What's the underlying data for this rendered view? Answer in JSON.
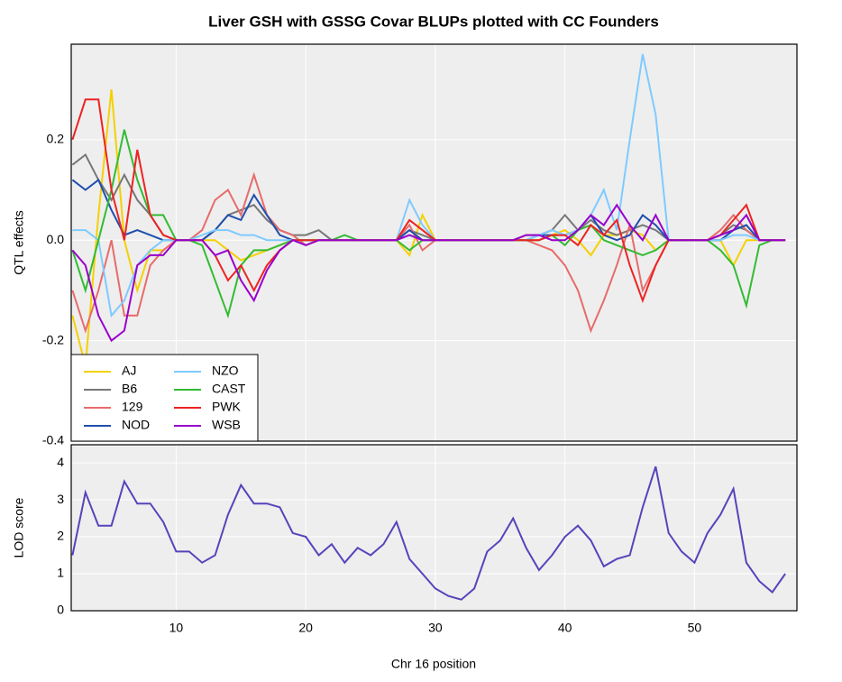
{
  "chart_data": [
    {
      "type": "line",
      "title": "Liver GSH with GSSG Covar BLUPs plotted with CC Founders",
      "y_label": "QTL effects",
      "x": [
        2,
        3,
        4,
        5,
        6,
        7,
        8,
        9,
        10,
        11,
        12,
        13,
        14,
        15,
        16,
        17,
        18,
        19,
        20,
        21,
        22,
        23,
        24,
        25,
        26,
        27,
        28,
        29,
        30,
        31,
        32,
        33,
        34,
        35,
        36,
        37,
        38,
        39,
        40,
        41,
        42,
        43,
        44,
        45,
        46,
        47,
        48,
        49,
        50,
        51,
        52,
        53,
        54,
        55,
        56,
        57
      ],
      "xlim": [
        1.9,
        57.9
      ],
      "ylim": [
        -0.4,
        0.39
      ],
      "yticks": [
        0.2,
        {
          "value": 0,
          "label": "0.0"
        },
        -0.2,
        -0.4
      ],
      "grid": true,
      "legend": "lower left",
      "series": [
        {
          "name": "AJ",
          "color": "#f5d000",
          "values": [
            -0.15,
            -0.25,
            0.05,
            0.3,
            0,
            -0.1,
            -0.02,
            -0.02,
            0,
            0,
            0,
            0,
            -0.02,
            -0.04,
            -0.03,
            -0.02,
            -0.01,
            0,
            0,
            0,
            0,
            0,
            0,
            0,
            0,
            0,
            -0.03,
            0.05,
            0,
            0,
            0,
            0,
            0,
            0,
            0,
            0,
            0,
            0.01,
            0.02,
            0,
            -0.03,
            0.01,
            0.01,
            0.02,
            0.01,
            -0.02,
            0,
            0,
            0,
            0,
            0,
            -0.05,
            0,
            0,
            0,
            0
          ]
        },
        {
          "name": "B6",
          "color": "#777777",
          "values": [
            0.15,
            0.17,
            0.12,
            0.08,
            0.13,
            0.08,
            0.05,
            0.01,
            0,
            0,
            0,
            0.02,
            0.05,
            0.06,
            0.07,
            0.04,
            0.02,
            0.01,
            0.01,
            0.02,
            0,
            0,
            0,
            0,
            0,
            0,
            0.02,
            0.01,
            0,
            0,
            0,
            0,
            0,
            0,
            0,
            0.01,
            0.01,
            0.02,
            0.05,
            0.02,
            0.04,
            0.02,
            0.01,
            0.02,
            0.03,
            0.02,
            0,
            0,
            0,
            0,
            0.01,
            0.03,
            0.02,
            0,
            0,
            0
          ]
        },
        {
          "name": "129",
          "color": "#e86b6b",
          "values": [
            -0.1,
            -0.18,
            -0.1,
            0,
            -0.15,
            -0.15,
            -0.05,
            -0.02,
            0,
            0,
            0.02,
            0.08,
            0.1,
            0.05,
            0.13,
            0.05,
            0.02,
            0.01,
            -0.01,
            0,
            0,
            0,
            0,
            0,
            0,
            0,
            0.03,
            -0.02,
            0,
            0,
            0,
            0,
            0,
            0,
            0,
            0,
            -0.01,
            -0.02,
            -0.05,
            -0.1,
            -0.18,
            -0.12,
            -0.05,
            0.03,
            -0.1,
            -0.05,
            0,
            0,
            0,
            0,
            0.02,
            0.05,
            0.02,
            0,
            0,
            0
          ]
        },
        {
          "name": "NOD",
          "color": "#1f4fad",
          "values": [
            0.12,
            0.1,
            0.12,
            0.06,
            0.01,
            0.02,
            0.01,
            0,
            0,
            0,
            0,
            0.02,
            0.05,
            0.04,
            0.09,
            0.05,
            0.01,
            0,
            0,
            0,
            0,
            0,
            0,
            0,
            0,
            0,
            0.02,
            0,
            0,
            0,
            0,
            0,
            0,
            0,
            0,
            0,
            0.01,
            0.01,
            0.01,
            0.02,
            0.05,
            0.01,
            0,
            0.01,
            0.05,
            0.03,
            0,
            0,
            0,
            0,
            0,
            0.02,
            0.03,
            0,
            0,
            0
          ]
        },
        {
          "name": "NZO",
          "color": "#7ecbff",
          "values": [
            0.02,
            0.02,
            0,
            -0.15,
            -0.12,
            -0.05,
            -0.02,
            0,
            0,
            0,
            0.01,
            0.02,
            0.02,
            0.01,
            0.01,
            0,
            0,
            0,
            0,
            0,
            0,
            0,
            0,
            0,
            0,
            0,
            0.08,
            0.03,
            0,
            0,
            0,
            0,
            0,
            0,
            0,
            0,
            0.01,
            0.02,
            0.01,
            0.02,
            0.05,
            0.1,
            0.02,
            0.2,
            0.37,
            0.25,
            0,
            0,
            0,
            0,
            0,
            0.01,
            0.01,
            0,
            0,
            0
          ]
        },
        {
          "name": "CAST",
          "color": "#33bb33",
          "values": [
            -0.02,
            -0.1,
            0,
            0.1,
            0.22,
            0.12,
            0.05,
            0.05,
            0,
            0,
            -0.01,
            -0.08,
            -0.15,
            -0.05,
            -0.02,
            -0.02,
            -0.01,
            0,
            0,
            0,
            0,
            0.01,
            0,
            0,
            0,
            0,
            -0.02,
            0,
            0,
            0,
            0,
            0,
            0,
            0,
            0,
            0,
            0,
            0.01,
            -0.01,
            0.02,
            0.03,
            0,
            -0.01,
            -0.02,
            -0.03,
            -0.02,
            0,
            0,
            0,
            0,
            -0.02,
            -0.05,
            -0.13,
            -0.01,
            0,
            0
          ]
        },
        {
          "name": "PWK",
          "color": "#ee2222",
          "values": [
            0.2,
            0.28,
            0.28,
            0.1,
            0,
            0.18,
            0.05,
            0.01,
            0,
            0,
            0,
            -0.03,
            -0.08,
            -0.05,
            -0.1,
            -0.05,
            -0.02,
            0,
            0,
            0,
            0,
            0,
            0,
            0,
            0,
            0,
            0.04,
            0.02,
            0,
            0,
            0,
            0,
            0,
            0,
            0,
            0,
            0,
            0.01,
            0.01,
            -0.01,
            0.03,
            0.01,
            0.04,
            -0.05,
            -0.12,
            -0.05,
            0,
            0,
            0,
            0,
            0.01,
            0.04,
            0.07,
            0,
            0,
            0
          ]
        },
        {
          "name": "WSB",
          "color": "#9900cc",
          "values": [
            -0.02,
            -0.05,
            -0.15,
            -0.2,
            -0.18,
            -0.05,
            -0.03,
            -0.03,
            0,
            0,
            0,
            -0.03,
            -0.02,
            -0.08,
            -0.12,
            -0.06,
            -0.02,
            0,
            -0.01,
            0,
            0,
            0,
            0,
            0,
            0,
            0,
            0.01,
            0,
            0,
            0,
            0,
            0,
            0,
            0,
            0,
            0.01,
            0.01,
            0,
            0,
            0.02,
            0.05,
            0.03,
            0.07,
            0.03,
            0,
            0.05,
            0,
            0,
            0,
            0,
            0.01,
            0.02,
            0.05,
            0,
            0,
            0
          ]
        }
      ]
    },
    {
      "type": "line",
      "x_label": "Chr 16 position",
      "y_label": "LOD score",
      "x": [
        2,
        3,
        4,
        5,
        6,
        7,
        8,
        9,
        10,
        11,
        12,
        13,
        14,
        15,
        16,
        17,
        18,
        19,
        20,
        21,
        22,
        23,
        24,
        25,
        26,
        27,
        28,
        29,
        30,
        31,
        32,
        33,
        34,
        35,
        36,
        37,
        38,
        39,
        40,
        41,
        42,
        43,
        44,
        45,
        46,
        47,
        48,
        49,
        50,
        51,
        52,
        53,
        54,
        55,
        56,
        57
      ],
      "values": [
        1.5,
        3.2,
        2.3,
        2.3,
        3.5,
        2.9,
        2.9,
        2.4,
        1.6,
        1.6,
        1.3,
        1.5,
        2.6,
        3.4,
        2.9,
        2.9,
        2.8,
        2.1,
        2.0,
        1.5,
        1.8,
        1.3,
        1.7,
        1.5,
        1.8,
        2.4,
        1.4,
        1.0,
        0.6,
        0.4,
        0.3,
        0.6,
        1.6,
        1.9,
        2.5,
        1.7,
        1.1,
        1.5,
        2.0,
        2.3,
        1.9,
        1.2,
        1.4,
        1.5,
        2.8,
        3.9,
        2.1,
        1.6,
        1.3,
        2.1,
        2.6,
        3.3,
        1.3,
        0.8,
        0.5,
        1.0
      ],
      "color": "#5544bb",
      "xlim": [
        1.9,
        57.9
      ],
      "ylim": [
        0,
        4.49
      ],
      "xticks": [
        10,
        20,
        30,
        40,
        50
      ],
      "yticks": [
        0,
        1,
        2,
        3,
        4
      ],
      "grid": true
    }
  ]
}
